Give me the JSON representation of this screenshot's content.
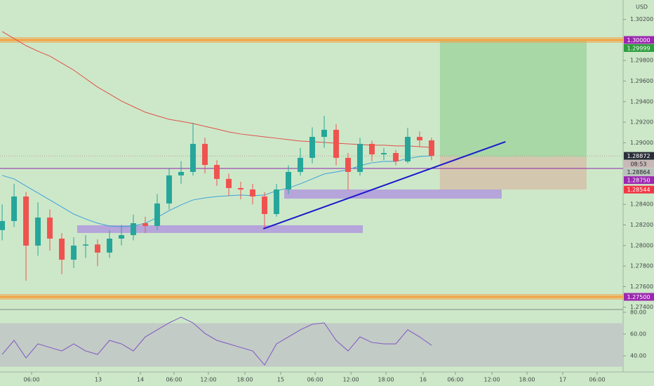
{
  "chart_data": {
    "type": "candlestick",
    "currency": "USD",
    "xlim": [
      -0.18,
      52.06
    ],
    "ylim": [
      1.27384,
      1.30389
    ],
    "xticks": [
      {
        "value": 2.47,
        "label": "06:00"
      },
      {
        "value": 8.06,
        "label": "13"
      },
      {
        "value": 11.59,
        "label": "14"
      },
      {
        "value": 14.41,
        "label": "06:00"
      },
      {
        "value": 17.29,
        "label": "12:00"
      },
      {
        "value": 20.35,
        "label": "18:00"
      },
      {
        "value": 23.35,
        "label": "15"
      },
      {
        "value": 26.24,
        "label": "06:00"
      },
      {
        "value": 29.24,
        "label": "12:00"
      },
      {
        "value": 32.18,
        "label": "18:00"
      },
      {
        "value": 35.29,
        "label": "16"
      },
      {
        "value": 38,
        "label": "06:00"
      },
      {
        "value": 41.06,
        "label": "12:00"
      },
      {
        "value": 44,
        "label": "18:00"
      },
      {
        "value": 47,
        "label": "17"
      },
      {
        "value": 49.88,
        "label": "06:00"
      }
    ],
    "yticks": [
      {
        "value": 1.302,
        "label": "1.30200"
      },
      {
        "value": 1.298,
        "label": "1.29800"
      },
      {
        "value": 1.296,
        "label": "1.29600"
      },
      {
        "value": 1.294,
        "label": "1.29400"
      },
      {
        "value": 1.292,
        "label": "1.29200"
      },
      {
        "value": 1.29,
        "label": "1.29000"
      },
      {
        "value": 1.284,
        "label": "1.28400"
      },
      {
        "value": 1.282,
        "label": "1.28200"
      },
      {
        "value": 1.28,
        "label": "1.28000"
      },
      {
        "value": 1.278,
        "label": "1.27800"
      },
      {
        "value": 1.276,
        "label": "1.27600"
      },
      {
        "value": 1.274,
        "label": "1.27400"
      }
    ],
    "up_color": "#26a69a",
    "down_color": "#ef5350",
    "candles": {
      "open": [
        1.2815,
        1.28238,
        1.28477,
        1.27999,
        1.28272,
        1.28067,
        1.27862,
        1.27999,
        1.2801,
        1.27931,
        1.28067,
        1.28101,
        1.28217,
        1.2819,
        1.28409,
        1.28682,
        1.28716,
        1.28989,
        1.28784,
        1.28648,
        1.28559,
        1.28545,
        1.28477,
        1.28306,
        1.28545,
        1.28716,
        1.28853,
        1.29057,
        1.29126,
        1.28853,
        1.28716,
        1.28989,
        1.28887,
        1.289,
        1.28818,
        1.29057,
        1.29023
      ],
      "high": [
        1.284,
        1.286,
        1.2852,
        1.2842,
        1.2835,
        1.2812,
        1.2808,
        1.281,
        1.2806,
        1.2815,
        1.282,
        1.283,
        1.2828,
        1.285,
        1.2875,
        1.2882,
        1.29194,
        1.2905,
        1.2883,
        1.287,
        1.2862,
        1.286,
        1.2852,
        1.286,
        1.2878,
        1.2895,
        1.2915,
        1.29262,
        1.2918,
        1.289,
        1.2905,
        1.2902,
        1.2895,
        1.2893,
        1.29146,
        1.2911,
        1.2905
      ],
      "low": [
        1.2805,
        1.2818,
        1.27657,
        1.279,
        1.2795,
        1.2772,
        1.2778,
        1.2788,
        1.278,
        1.2788,
        1.28,
        1.2805,
        1.2812,
        1.2815,
        1.2835,
        1.286,
        1.2868,
        1.287,
        1.2858,
        1.2848,
        1.2845,
        1.284,
        1.2817,
        1.2828,
        1.285,
        1.2868,
        1.288,
        1.2895,
        1.2878,
        1.2854,
        1.2868,
        1.2882,
        1.2883,
        1.2878,
        1.288,
        1.2896,
        1.2883
      ],
      "close": [
        1.28238,
        1.28477,
        1.27999,
        1.28272,
        1.28067,
        1.27862,
        1.27999,
        1.2801,
        1.27931,
        1.28067,
        1.28101,
        1.28217,
        1.2819,
        1.28409,
        1.28682,
        1.28716,
        1.28989,
        1.28784,
        1.28648,
        1.28559,
        1.28545,
        1.28477,
        1.28306,
        1.28545,
        1.28716,
        1.28853,
        1.29057,
        1.29126,
        1.28853,
        1.28716,
        1.28989,
        1.28887,
        1.289,
        1.28818,
        1.29057,
        1.29023,
        1.28872
      ]
    },
    "moving_averages": [
      {
        "color": "#e0504a",
        "values": [
          1.30082,
          1.30014,
          1.29945,
          1.29891,
          1.29843,
          1.29775,
          1.29707,
          1.29624,
          1.29542,
          1.29474,
          1.29406,
          1.29351,
          1.29297,
          1.29262,
          1.29228,
          1.29208,
          1.29187,
          1.2916,
          1.29133,
          1.29105,
          1.29085,
          1.29071,
          1.29057,
          1.29044,
          1.2903,
          1.29016,
          1.2901,
          1.29003,
          1.28996,
          1.28989,
          1.28982,
          1.28976,
          1.28976,
          1.28969,
          1.28969,
          1.28962,
          1.28955
        ]
      },
      {
        "color": "#3fa0d8",
        "values": [
          1.28682,
          1.28648,
          1.28579,
          1.28511,
          1.28443,
          1.28375,
          1.28306,
          1.28258,
          1.28217,
          1.2819,
          1.28183,
          1.2819,
          1.28217,
          1.28272,
          1.2834,
          1.28395,
          1.28443,
          1.28463,
          1.28477,
          1.28484,
          1.28491,
          1.28484,
          1.28491,
          1.28532,
          1.28559,
          1.286,
          1.28648,
          1.28696,
          1.28716,
          1.28736,
          1.28777,
          1.28805,
          1.28818,
          1.28818,
          1.28846,
          1.28866,
          1.28873
        ]
      }
    ],
    "levels": [
      {
        "value": 1.3,
        "color": "#f5a040"
      },
      {
        "value": 1.275,
        "color": "#f5a040"
      }
    ],
    "purple_line": {
      "value": 1.2875,
      "color": "#8e24aa"
    },
    "zones": [
      {
        "x": [
          6.29,
          30.24
        ],
        "y": [
          1.28122,
          1.28197
        ],
        "color": "#b39ddb"
      },
      {
        "x": [
          23.65,
          41.88
        ],
        "y": [
          1.28456,
          1.28545
        ],
        "color": "#b39ddb"
      }
    ],
    "trendline": {
      "x": [
        21.9,
        42.2
      ],
      "y": [
        1.28163,
        1.2901
      ],
      "color": "#1a1acc"
    },
    "position": {
      "x": [
        36.7,
        49
      ],
      "entry": 1.28864,
      "target": 1.29999,
      "stop": 1.28544
    },
    "price_labels": [
      {
        "value": 1.3,
        "label": "1.30000",
        "color": "#9c27b0",
        "text_color": "#ffffff"
      },
      {
        "value": 1.29999,
        "label": "1.29999",
        "color": "#2e9e3e",
        "text_color": "#ffffff"
      },
      {
        "value": 1.28872,
        "label": "1.28872",
        "color": "#2a2e39",
        "text_color": "#ffffff"
      },
      {
        "value": 1.28864,
        "label": "1.28864",
        "color": "#b9c2bd",
        "text_color": "#222222"
      },
      {
        "value": 1.2875,
        "label": "1.28750",
        "color": "#9c27b0",
        "text_color": "#ffffff"
      },
      {
        "value": 1.28544,
        "label": "1.28544",
        "color": "#f23645",
        "text_color": "#ffffff"
      },
      {
        "value": 1.275,
        "label": "1.27500",
        "color": "#9c27b0",
        "text_color": "#ffffff"
      }
    ],
    "countdown": "08:53",
    "rsi": {
      "color": "#7e57c2",
      "ylim": [
        25.2,
        81.9
      ],
      "band": [
        30,
        70
      ],
      "yticks": [
        {
          "value": 80,
          "label": "80.00"
        },
        {
          "value": 60,
          "label": "60.00"
        },
        {
          "value": 40,
          "label": "40.00"
        }
      ],
      "values": [
        41.3,
        54.2,
        38.1,
        51.0,
        47.7,
        44.5,
        51.0,
        44.5,
        41.3,
        54.2,
        51.0,
        44.5,
        57.4,
        63.9,
        70.3,
        75.5,
        70.3,
        60.6,
        54.2,
        51.0,
        47.7,
        44.5,
        31.6,
        51.0,
        57.4,
        63.9,
        69.0,
        70.3,
        54.2,
        44.5,
        57.4,
        52.3,
        51.0,
        51.0,
        63.9,
        57.4,
        49.7
      ]
    }
  }
}
